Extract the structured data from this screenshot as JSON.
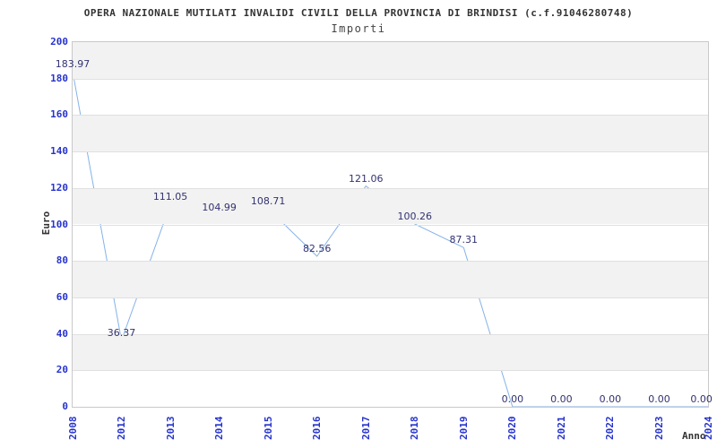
{
  "header": {
    "title": "OPERA NAZIONALE MUTILATI INVALIDI CIVILI DELLA PROVINCIA DI BRINDISI (c.f.91046280748)",
    "subtitle": "Importi"
  },
  "axes": {
    "y_label": "Euro",
    "x_label": "Anno"
  },
  "chart_data": {
    "type": "line",
    "title": "OPERA NAZIONALE MUTILATI INVALIDI CIVILI DELLA PROVINCIA DI BRINDISI (c.f.91046280748)",
    "subtitle": "Importi",
    "xlabel": "Anno",
    "ylabel": "Euro",
    "categories": [
      "2008",
      "2012",
      "2013",
      "2014",
      "2015",
      "2016",
      "2017",
      "2018",
      "2019",
      "2020",
      "2021",
      "2022",
      "2023",
      "2024"
    ],
    "values": [
      183.97,
      36.37,
      111.05,
      104.99,
      108.71,
      82.56,
      121.06,
      100.26,
      87.31,
      0,
      0,
      0,
      0,
      0
    ],
    "point_labels": [
      "183.97",
      "36.37",
      "111.05",
      "104.99",
      "108.71",
      "82.56",
      "121.06",
      "100.26",
      "87.31",
      "0.00",
      "0.00",
      "0.00",
      "0.00",
      "0.00"
    ],
    "ylim": [
      0,
      200
    ],
    "ytick_step": 20,
    "yticks": [
      0,
      20,
      40,
      60,
      80,
      100,
      120,
      140,
      160,
      180,
      200
    ],
    "grid": "horizontal-bands-alternating",
    "legend": "none",
    "colors": {
      "line": "#84b2e8",
      "tick_label": "#2633cc",
      "data_label": "#323272",
      "band_gray": "#f2f2f2",
      "grid_line": "#e0e0e0",
      "plot_border": "#c9c9c9",
      "title": "#333333",
      "subtitle": "#444444",
      "axis_title": "#333333"
    }
  }
}
